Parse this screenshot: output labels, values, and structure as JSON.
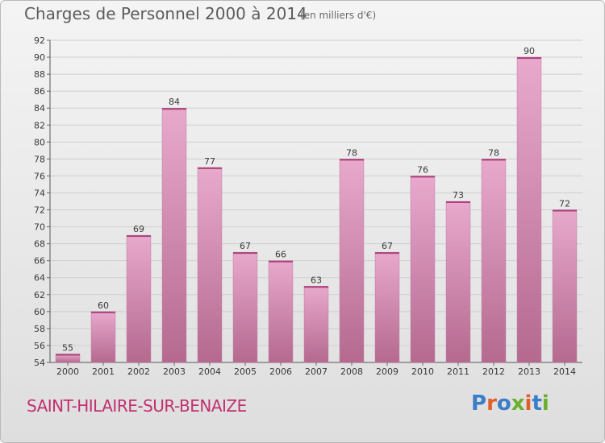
{
  "title": "Charges de Personnel 2000 à 2014",
  "subtitle": "(en milliers d'€)",
  "place_name": "SAINT-HILAIRE-SUR-BENAIZE",
  "logo": {
    "text": "Proxiti",
    "colors": [
      "#3a7dc9",
      "#e0602a",
      "#3a7dc9",
      "#6ab02c",
      "#e0602a",
      "#3a7dc9",
      "#6ab02c"
    ]
  },
  "chart_data": {
    "type": "bar",
    "categories": [
      "2000",
      "2001",
      "2002",
      "2003",
      "2004",
      "2005",
      "2006",
      "2007",
      "2008",
      "2009",
      "2010",
      "2011",
      "2012",
      "2013",
      "2014"
    ],
    "values": [
      55,
      60,
      69,
      84,
      77,
      67,
      66,
      63,
      78,
      67,
      76,
      73,
      78,
      90,
      72
    ],
    "ylim": [
      54,
      92
    ],
    "yticks": [
      54,
      56,
      58,
      60,
      62,
      64,
      66,
      68,
      70,
      72,
      74,
      76,
      78,
      80,
      82,
      84,
      86,
      88,
      90,
      92
    ],
    "grid": true,
    "bar_color": "#d58db6"
  }
}
